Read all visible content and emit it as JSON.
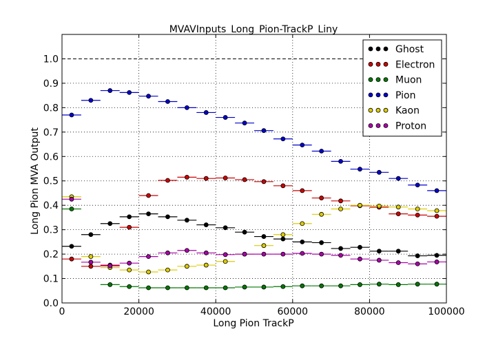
{
  "chart_data": {
    "type": "scatter",
    "title": "MVAVInputs_Long_Pion-TrackP_Liny",
    "xlabel": "Long Pion TrackP",
    "ylabel": "Long Pion MVA Output",
    "xlim": [
      0,
      100000
    ],
    "ylim": [
      0,
      1.1
    ],
    "x_ticks": [
      0,
      20000,
      40000,
      60000,
      80000,
      100000
    ],
    "x_tick_labels": [
      "0",
      "20000",
      "40000",
      "60000",
      "80000",
      "100000"
    ],
    "y_ticks": [
      0.0,
      0.1,
      0.2,
      0.3,
      0.4,
      0.5,
      0.6,
      0.7,
      0.8,
      0.9,
      1.0
    ],
    "y_tick_labels": [
      "0.0",
      "0.1",
      "0.2",
      "0.3",
      "0.4",
      "0.5",
      "0.6",
      "0.7",
      "0.8",
      "0.9",
      "1.0"
    ],
    "grid": true,
    "reference_line_y": 1.0,
    "legend_position": "top-right",
    "x": [
      2500,
      7500,
      12500,
      17500,
      22500,
      27500,
      32500,
      37500,
      42500,
      47500,
      52500,
      57500,
      62500,
      67500,
      72500,
      77500,
      82500,
      87500,
      92500,
      97500
    ],
    "x_bin_half_width": 2500,
    "series": [
      {
        "name": "Ghost",
        "color": "#000000",
        "values": [
          0.232,
          0.28,
          0.325,
          0.353,
          0.365,
          0.353,
          0.339,
          0.32,
          0.308,
          0.29,
          0.272,
          0.262,
          0.25,
          0.247,
          0.223,
          0.228,
          0.212,
          0.212,
          0.193,
          0.195
        ]
      },
      {
        "name": "Electron",
        "color": "#cc0000",
        "values": [
          0.18,
          0.15,
          0.155,
          0.31,
          0.44,
          0.502,
          0.515,
          0.51,
          0.512,
          0.505,
          0.497,
          0.48,
          0.46,
          0.43,
          0.418,
          0.398,
          0.392,
          0.365,
          0.36,
          0.355
        ]
      },
      {
        "name": "Muon",
        "color": "#007700",
        "values": [
          0.385,
          null,
          0.075,
          0.067,
          0.062,
          0.062,
          0.062,
          0.062,
          0.062,
          0.065,
          0.065,
          0.067,
          0.07,
          0.07,
          0.07,
          0.075,
          0.077,
          0.075,
          0.077,
          0.077
        ]
      },
      {
        "name": "Pion",
        "color": "#0000cc",
        "values": [
          0.77,
          0.83,
          0.87,
          0.862,
          0.847,
          0.825,
          0.8,
          0.78,
          0.76,
          0.737,
          0.706,
          0.672,
          0.647,
          0.622,
          0.58,
          0.548,
          0.535,
          0.51,
          0.483,
          0.46
        ]
      },
      {
        "name": "Kaon",
        "color": "#ddcc00",
        "values": [
          0.435,
          0.19,
          0.145,
          0.135,
          0.127,
          0.135,
          0.15,
          0.155,
          0.17,
          0.2,
          0.235,
          0.28,
          0.325,
          0.363,
          0.385,
          0.4,
          0.397,
          0.393,
          0.385,
          0.378
        ]
      },
      {
        "name": "Proton",
        "color": "#aa00aa",
        "values": [
          0.425,
          0.167,
          0.152,
          0.163,
          0.19,
          0.205,
          0.215,
          0.205,
          0.198,
          0.2,
          0.2,
          0.2,
          0.203,
          0.2,
          0.195,
          0.18,
          0.175,
          0.165,
          0.16,
          0.168
        ]
      }
    ]
  }
}
